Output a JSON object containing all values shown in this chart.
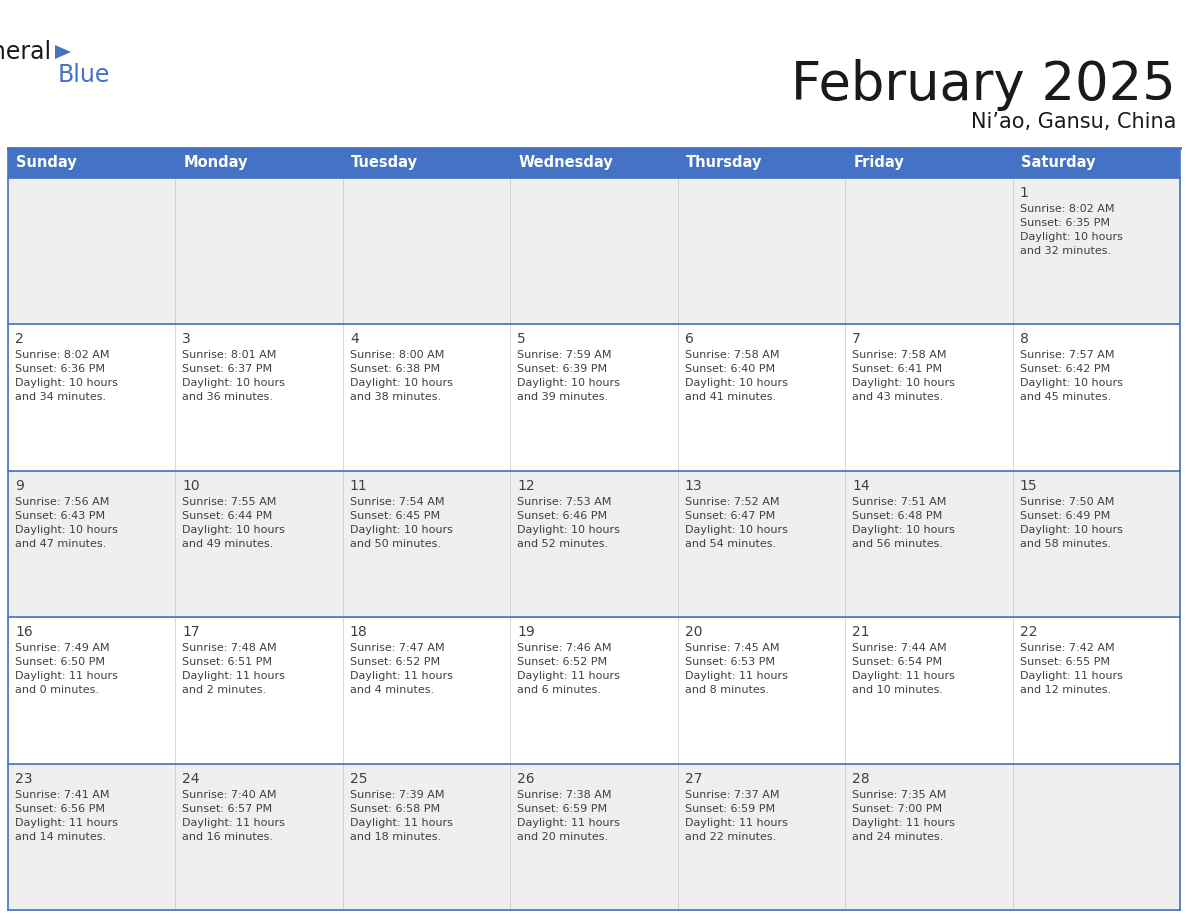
{
  "title": "February 2025",
  "subtitle": "Ni’ao, Gansu, China",
  "header_bg": "#4472C4",
  "header_text": "#FFFFFF",
  "day_headers": [
    "Sunday",
    "Monday",
    "Tuesday",
    "Wednesday",
    "Thursday",
    "Friday",
    "Saturday"
  ],
  "bg_color": "#FFFFFF",
  "cell_bg_odd": "#EFEFEF",
  "cell_bg_even": "#FFFFFF",
  "border_color": "#4472C4",
  "text_color": "#404040",
  "days": [
    {
      "date": 1,
      "col": 6,
      "row": 0,
      "sunrise": "8:02 AM",
      "sunset": "6:35 PM",
      "daylight": "10 hours and 32 minutes."
    },
    {
      "date": 2,
      "col": 0,
      "row": 1,
      "sunrise": "8:02 AM",
      "sunset": "6:36 PM",
      "daylight": "10 hours and 34 minutes."
    },
    {
      "date": 3,
      "col": 1,
      "row": 1,
      "sunrise": "8:01 AM",
      "sunset": "6:37 PM",
      "daylight": "10 hours and 36 minutes."
    },
    {
      "date": 4,
      "col": 2,
      "row": 1,
      "sunrise": "8:00 AM",
      "sunset": "6:38 PM",
      "daylight": "10 hours and 38 minutes."
    },
    {
      "date": 5,
      "col": 3,
      "row": 1,
      "sunrise": "7:59 AM",
      "sunset": "6:39 PM",
      "daylight": "10 hours and 39 minutes."
    },
    {
      "date": 6,
      "col": 4,
      "row": 1,
      "sunrise": "7:58 AM",
      "sunset": "6:40 PM",
      "daylight": "10 hours and 41 minutes."
    },
    {
      "date": 7,
      "col": 5,
      "row": 1,
      "sunrise": "7:58 AM",
      "sunset": "6:41 PM",
      "daylight": "10 hours and 43 minutes."
    },
    {
      "date": 8,
      "col": 6,
      "row": 1,
      "sunrise": "7:57 AM",
      "sunset": "6:42 PM",
      "daylight": "10 hours and 45 minutes."
    },
    {
      "date": 9,
      "col": 0,
      "row": 2,
      "sunrise": "7:56 AM",
      "sunset": "6:43 PM",
      "daylight": "10 hours and 47 minutes."
    },
    {
      "date": 10,
      "col": 1,
      "row": 2,
      "sunrise": "7:55 AM",
      "sunset": "6:44 PM",
      "daylight": "10 hours and 49 minutes."
    },
    {
      "date": 11,
      "col": 2,
      "row": 2,
      "sunrise": "7:54 AM",
      "sunset": "6:45 PM",
      "daylight": "10 hours and 50 minutes."
    },
    {
      "date": 12,
      "col": 3,
      "row": 2,
      "sunrise": "7:53 AM",
      "sunset": "6:46 PM",
      "daylight": "10 hours and 52 minutes."
    },
    {
      "date": 13,
      "col": 4,
      "row": 2,
      "sunrise": "7:52 AM",
      "sunset": "6:47 PM",
      "daylight": "10 hours and 54 minutes."
    },
    {
      "date": 14,
      "col": 5,
      "row": 2,
      "sunrise": "7:51 AM",
      "sunset": "6:48 PM",
      "daylight": "10 hours and 56 minutes."
    },
    {
      "date": 15,
      "col": 6,
      "row": 2,
      "sunrise": "7:50 AM",
      "sunset": "6:49 PM",
      "daylight": "10 hours and 58 minutes."
    },
    {
      "date": 16,
      "col": 0,
      "row": 3,
      "sunrise": "7:49 AM",
      "sunset": "6:50 PM",
      "daylight": "11 hours and 0 minutes."
    },
    {
      "date": 17,
      "col": 1,
      "row": 3,
      "sunrise": "7:48 AM",
      "sunset": "6:51 PM",
      "daylight": "11 hours and 2 minutes."
    },
    {
      "date": 18,
      "col": 2,
      "row": 3,
      "sunrise": "7:47 AM",
      "sunset": "6:52 PM",
      "daylight": "11 hours and 4 minutes."
    },
    {
      "date": 19,
      "col": 3,
      "row": 3,
      "sunrise": "7:46 AM",
      "sunset": "6:52 PM",
      "daylight": "11 hours and 6 minutes."
    },
    {
      "date": 20,
      "col": 4,
      "row": 3,
      "sunrise": "7:45 AM",
      "sunset": "6:53 PM",
      "daylight": "11 hours and 8 minutes."
    },
    {
      "date": 21,
      "col": 5,
      "row": 3,
      "sunrise": "7:44 AM",
      "sunset": "6:54 PM",
      "daylight": "11 hours and 10 minutes."
    },
    {
      "date": 22,
      "col": 6,
      "row": 3,
      "sunrise": "7:42 AM",
      "sunset": "6:55 PM",
      "daylight": "11 hours and 12 minutes."
    },
    {
      "date": 23,
      "col": 0,
      "row": 4,
      "sunrise": "7:41 AM",
      "sunset": "6:56 PM",
      "daylight": "11 hours and 14 minutes."
    },
    {
      "date": 24,
      "col": 1,
      "row": 4,
      "sunrise": "7:40 AM",
      "sunset": "6:57 PM",
      "daylight": "11 hours and 16 minutes."
    },
    {
      "date": 25,
      "col": 2,
      "row": 4,
      "sunrise": "7:39 AM",
      "sunset": "6:58 PM",
      "daylight": "11 hours and 18 minutes."
    },
    {
      "date": 26,
      "col": 3,
      "row": 4,
      "sunrise": "7:38 AM",
      "sunset": "6:59 PM",
      "daylight": "11 hours and 20 minutes."
    },
    {
      "date": 27,
      "col": 4,
      "row": 4,
      "sunrise": "7:37 AM",
      "sunset": "6:59 PM",
      "daylight": "11 hours and 22 minutes."
    },
    {
      "date": 28,
      "col": 5,
      "row": 4,
      "sunrise": "7:35 AM",
      "sunset": "7:00 PM",
      "daylight": "11 hours and 24 minutes."
    }
  ]
}
